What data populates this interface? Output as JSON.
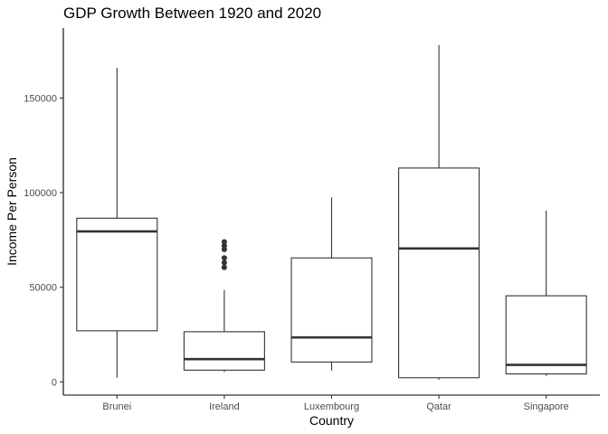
{
  "chart_data": {
    "type": "boxplot",
    "title": "GDP Growth Between 1920 and 2020",
    "xlabel": "Country",
    "ylabel": "Income Per Person",
    "ylim": [
      -7000,
      187000
    ],
    "yticks": [
      0,
      50000,
      100000,
      150000
    ],
    "ytick_labels": [
      "0",
      "50000",
      "100000",
      "150000"
    ],
    "grid": false,
    "categories": [
      "Brunei",
      "Ireland",
      "Luxembourg",
      "Qatar",
      "Singapore"
    ],
    "boxes": [
      {
        "category": "Brunei",
        "whisker_low": 2200,
        "q1": 27000,
        "median": 79500,
        "q3": 86500,
        "whisker_high": 166000,
        "outliers": []
      },
      {
        "category": "Ireland",
        "whisker_low": 5200,
        "q1": 6200,
        "median": 12000,
        "q3": 26500,
        "whisker_high": 48500,
        "outliers": [
          60500,
          63000,
          65500,
          70000,
          72000,
          74000
        ]
      },
      {
        "category": "Luxembourg",
        "whisker_low": 6000,
        "q1": 10500,
        "median": 23500,
        "q3": 65500,
        "whisker_high": 97500,
        "outliers": []
      },
      {
        "category": "Qatar",
        "whisker_low": 1200,
        "q1": 2200,
        "median": 70500,
        "q3": 113000,
        "whisker_high": 178000,
        "outliers": []
      },
      {
        "category": "Singapore",
        "whisker_low": 3200,
        "q1": 4200,
        "median": 9000,
        "q3": 45500,
        "whisker_high": 90500,
        "outliers": []
      }
    ]
  }
}
